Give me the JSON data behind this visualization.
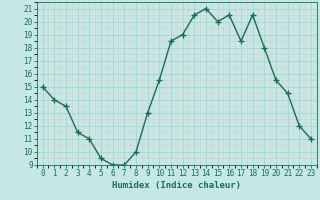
{
  "x": [
    0,
    1,
    2,
    3,
    4,
    5,
    6,
    7,
    8,
    9,
    10,
    11,
    12,
    13,
    14,
    15,
    16,
    17,
    18,
    19,
    20,
    21,
    22,
    23
  ],
  "y": [
    15,
    14,
    13.5,
    11.5,
    11,
    9.5,
    9,
    9,
    10,
    13,
    15.5,
    18.5,
    19,
    20.5,
    21,
    20,
    20.5,
    18.5,
    20.5,
    18,
    15.5,
    14.5,
    12,
    11
  ],
  "line_color": "#1a6b5e",
  "marker": "+",
  "marker_size": 4,
  "marker_lw": 1.0,
  "bg_color": "#c5e8e5",
  "grid_major_color": "#aad4d0",
  "grid_minor_color": "#e0c8c8",
  "xlabel": "Humidex (Indice chaleur)",
  "xlim": [
    -0.5,
    23.5
  ],
  "ylim": [
    9,
    21.5
  ],
  "yticks": [
    9,
    10,
    11,
    12,
    13,
    14,
    15,
    16,
    17,
    18,
    19,
    20,
    21
  ],
  "xticks": [
    0,
    1,
    2,
    3,
    4,
    5,
    6,
    7,
    8,
    9,
    10,
    11,
    12,
    13,
    14,
    15,
    16,
    17,
    18,
    19,
    20,
    21,
    22,
    23
  ],
  "tick_fontsize": 5.5,
  "label_fontsize": 6.5,
  "line_width": 1.0
}
